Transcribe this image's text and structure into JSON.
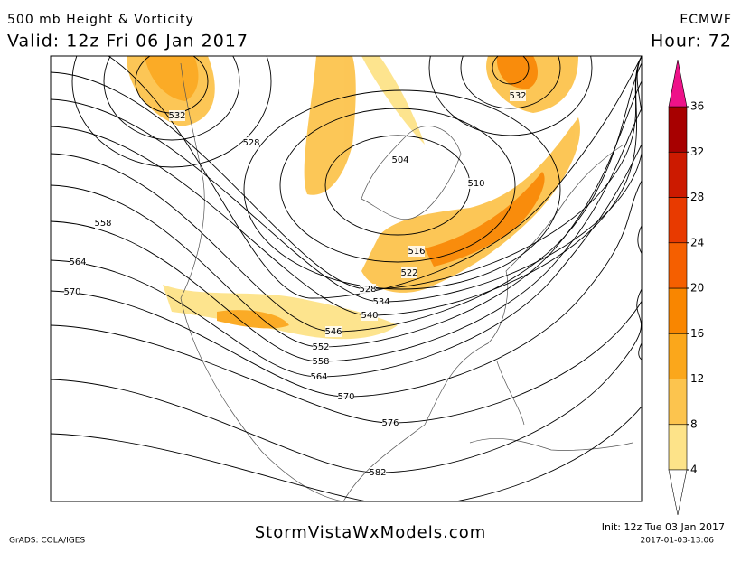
{
  "header": {
    "title": "500 mb Height & Vorticity",
    "valid": "Valid: 12z Fri 06 Jan 2017",
    "model": "ECMWF",
    "hour": "Hour: 72"
  },
  "contour_labels": [
    "532",
    "528",
    "504",
    "510",
    "516",
    "522",
    "528",
    "534",
    "540",
    "546",
    "552",
    "558",
    "564",
    "570",
    "576",
    "582",
    "558",
    "564",
    "570",
    "532"
  ],
  "colorbar": {
    "ticks": [
      4,
      8,
      12,
      16,
      20,
      24,
      28,
      32,
      36
    ],
    "colors": [
      "#fde389",
      "#fcc44e",
      "#fba71b",
      "#f98600",
      "#f55f00",
      "#e83a00",
      "#cc1a00",
      "#a70000"
    ],
    "over_color": "#ee1289",
    "under_color": "#ffffff"
  },
  "footer": {
    "software": "GrADS: COLA/IGES",
    "site": "StormVistaWxModels.com",
    "init": "Init: 12z Tue 03 Jan 2017",
    "stamp": "2017-01-03-13:06"
  }
}
